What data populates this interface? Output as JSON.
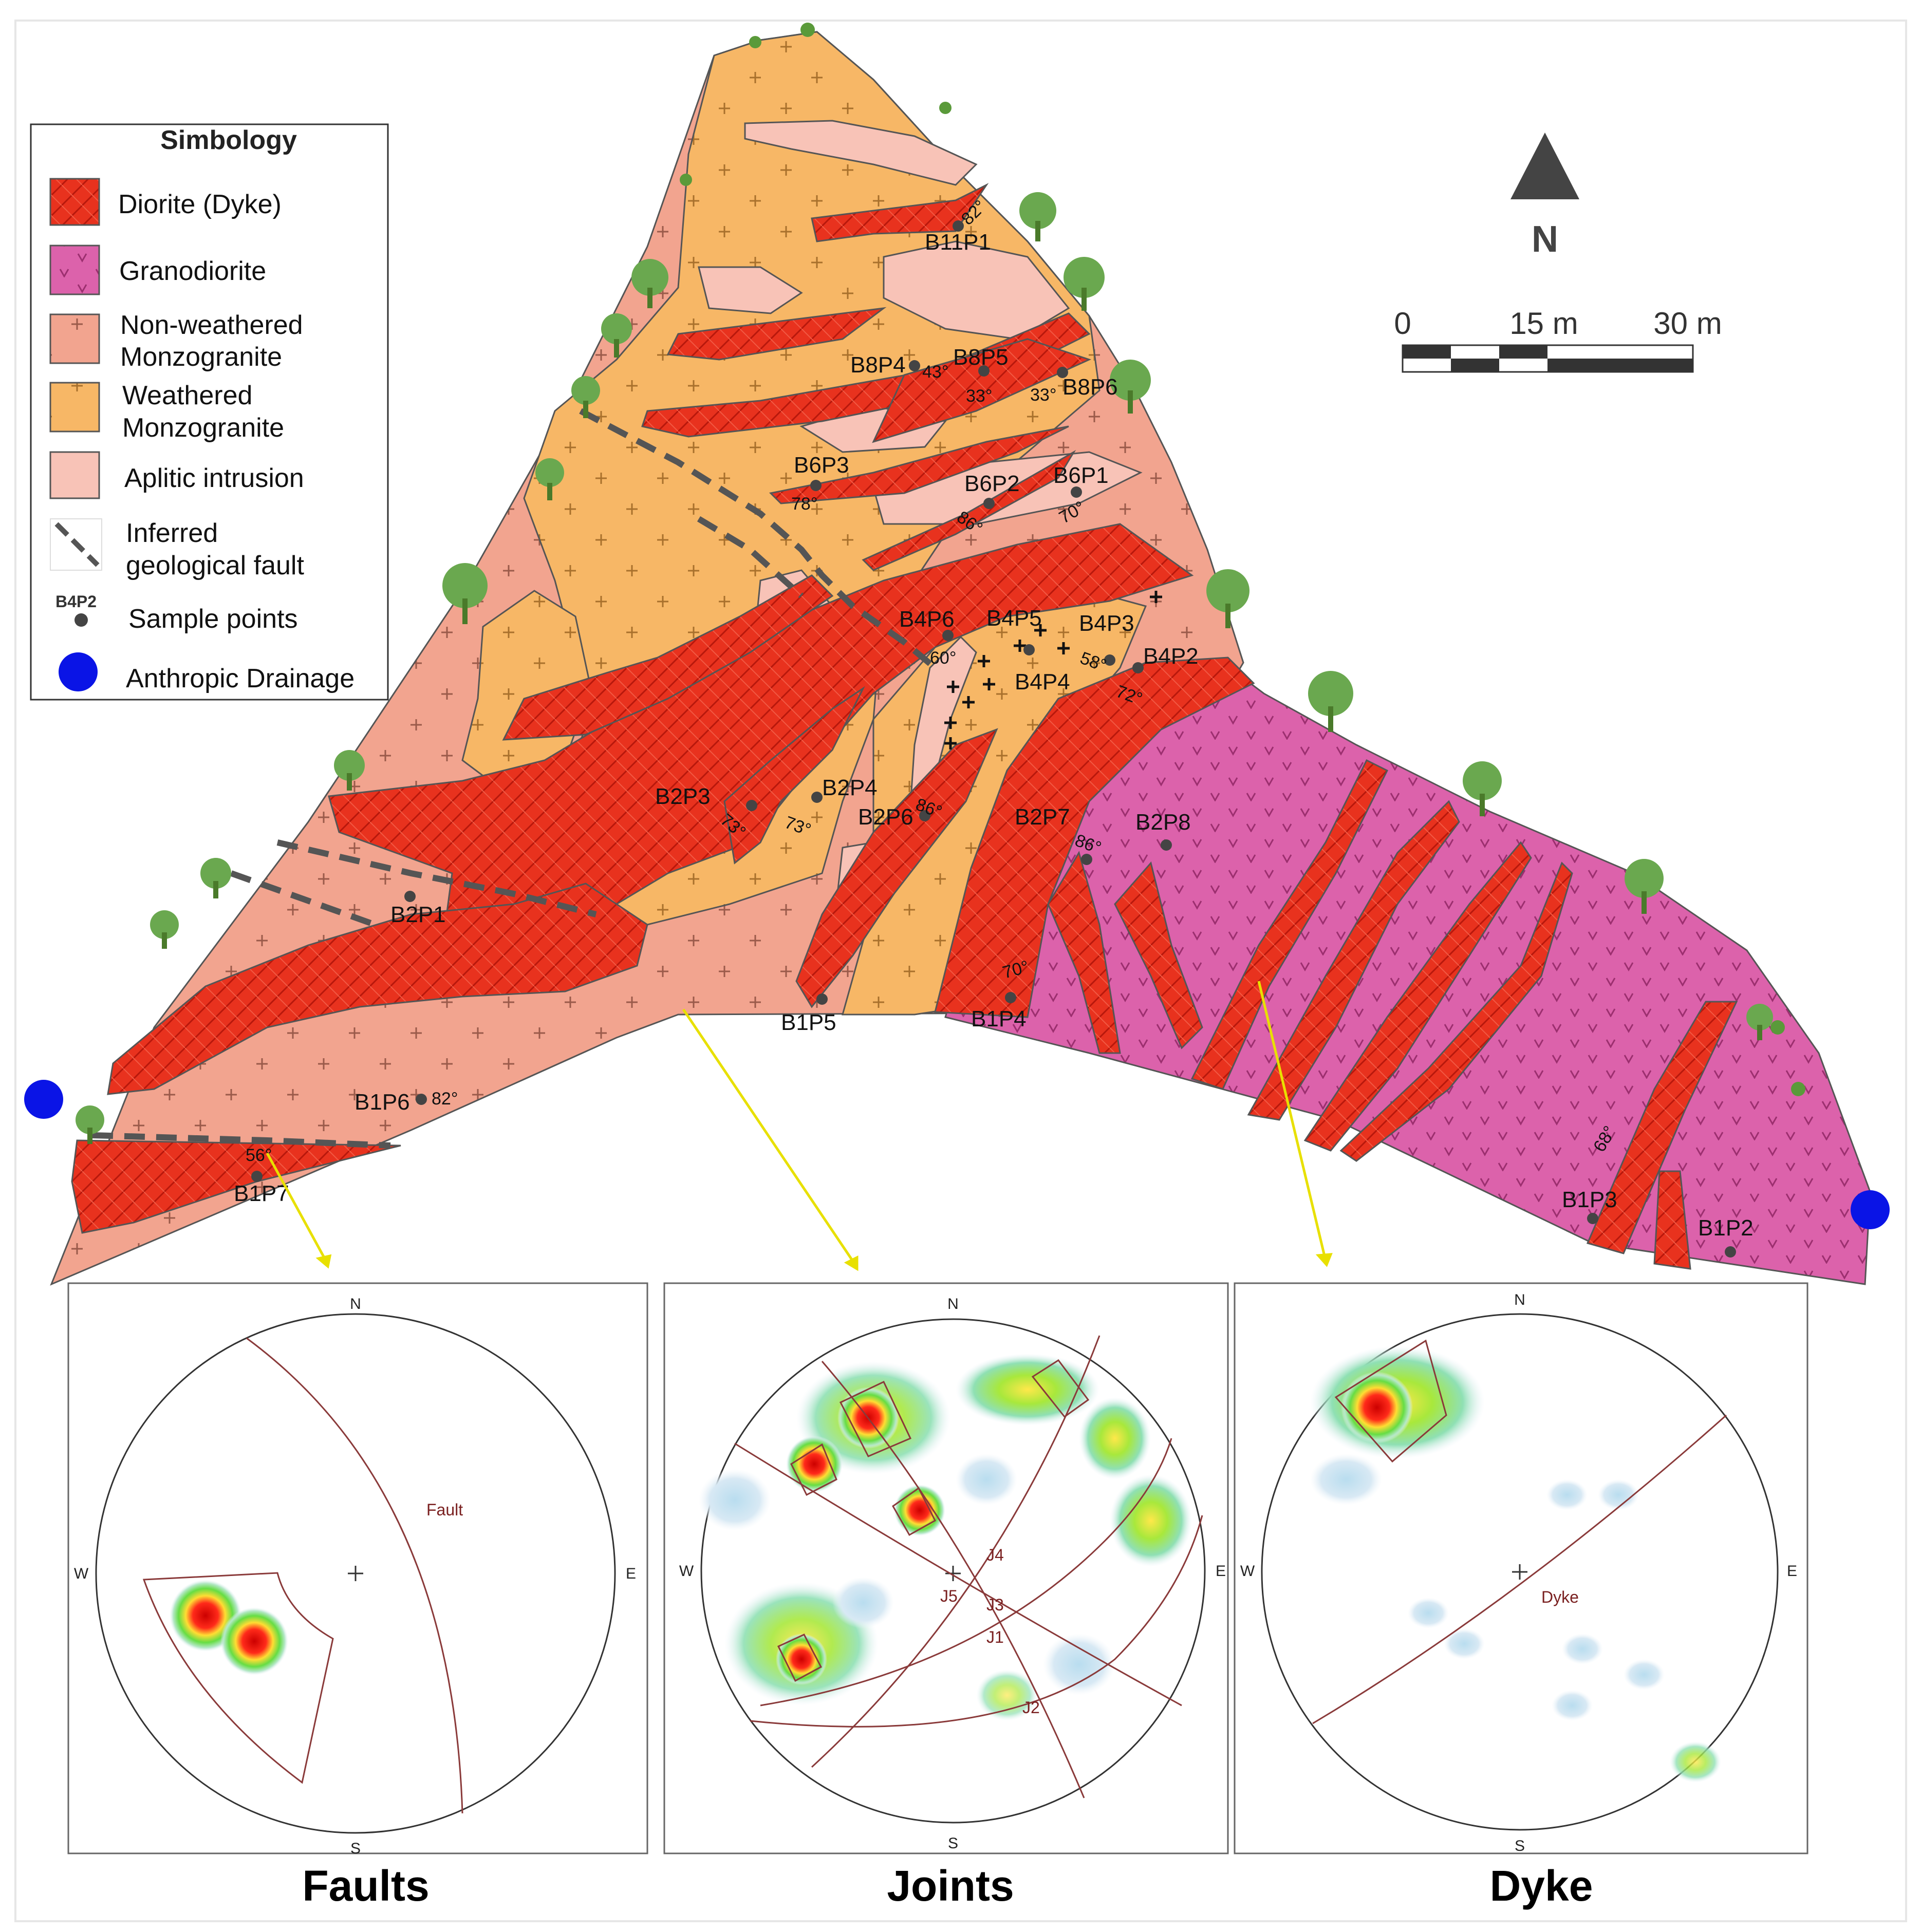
{
  "legend": {
    "title": "Simbology",
    "items": [
      {
        "key": "diorite",
        "label_lines": [
          "Diorite (Dyke)"
        ],
        "color": "#e8321e"
      },
      {
        "key": "granodiorite",
        "label_lines": [
          "Granodiorite"
        ],
        "color": "#dc62ab"
      },
      {
        "key": "nonweathered",
        "label_lines": [
          "Non-weathered",
          "Monzogranite"
        ],
        "color": "#f2a48f"
      },
      {
        "key": "weathered",
        "label_lines": [
          "Weathered",
          "Monzogranite"
        ],
        "color": "#f7b766"
      },
      {
        "key": "aplitic",
        "label_lines": [
          "Aplitic intrusion"
        ],
        "color": "#f8c3b7"
      },
      {
        "key": "fault",
        "label_lines": [
          "Inferred",
          "geological fault"
        ],
        "color": "#555555"
      },
      {
        "key": "sample",
        "label_lines": [
          "Sample points"
        ],
        "symbol_label": "B4P2",
        "color": "#444444"
      },
      {
        "key": "drainage",
        "label_lines": [
          "Anthropic Drainage"
        ],
        "color": "#0a14e6"
      }
    ]
  },
  "north_arrow": {
    "label": "N"
  },
  "scale_bar": {
    "ticks": [
      "0",
      "15 m",
      "30 m"
    ]
  },
  "samples": [
    {
      "id": "B11P1",
      "dip": "82°"
    },
    {
      "id": "B8P4",
      "dip": "43°"
    },
    {
      "id": "B8P5",
      "dip": "33°"
    },
    {
      "id": "B8P6",
      "dip": "33°"
    },
    {
      "id": "B6P3",
      "dip": "78°"
    },
    {
      "id": "B6P2",
      "dip": "86°"
    },
    {
      "id": "B6P1",
      "dip": "70°"
    },
    {
      "id": "B4P6",
      "dip": "60°"
    },
    {
      "id": "B4P5",
      "dip": ""
    },
    {
      "id": "B4P3",
      "dip": "58°"
    },
    {
      "id": "B4P2",
      "dip": "72°"
    },
    {
      "id": "B4P4",
      "dip": ""
    },
    {
      "id": "B2P3",
      "dip": "73°"
    },
    {
      "id": "B2P4",
      "dip": "73°"
    },
    {
      "id": "B2P6",
      "dip": "86°"
    },
    {
      "id": "B2P7",
      "dip": "86°"
    },
    {
      "id": "B2P8",
      "dip": ""
    },
    {
      "id": "B2P1",
      "dip": ""
    },
    {
      "id": "B1P5",
      "dip": ""
    },
    {
      "id": "B1P4",
      "dip": "70°"
    },
    {
      "id": "B1P6",
      "dip": "82°"
    },
    {
      "id": "B1P7",
      "dip": "56°"
    },
    {
      "id": "B1P3",
      "dip": "68°"
    },
    {
      "id": "B1P2",
      "dip": ""
    }
  ],
  "stereonets": [
    {
      "caption": "Faults",
      "directions": {
        "n": "N",
        "s": "S",
        "e": "E",
        "w": "W"
      },
      "plane_labels": [
        "Fault"
      ]
    },
    {
      "caption": "Joints",
      "directions": {
        "n": "N",
        "s": "S",
        "e": "E",
        "w": "W"
      },
      "plane_labels": [
        "J1",
        "J2",
        "J3",
        "J4",
        "J5"
      ]
    },
    {
      "caption": "Dyke",
      "directions": {
        "n": "N",
        "s": "S",
        "e": "E",
        "w": "W"
      },
      "plane_labels": [
        "Dyke"
      ]
    }
  ]
}
